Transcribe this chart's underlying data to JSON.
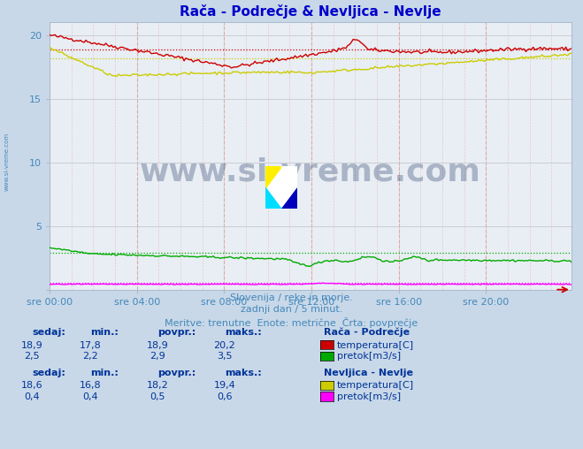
{
  "title": "Rača - Podrečje & Nevljica - Nevlje",
  "title_color": "#0000cc",
  "bg_color": "#c8d8e8",
  "plot_bg_color": "#e8eef4",
  "xlabel_color": "#4488bb",
  "xtick_labels": [
    "sre 00:00",
    "sre 04:00",
    "sre 08:00",
    "sre 12:00",
    "sre 16:00",
    "sre 20:00"
  ],
  "xtick_positions": [
    0,
    48,
    96,
    144,
    192,
    240
  ],
  "ytick_positions": [
    0,
    5,
    10,
    15,
    20
  ],
  "ymin": 0,
  "ymax": 21,
  "xmin": 0,
  "xmax": 287,
  "n_points": 288,
  "watermark_text": "www.si-vreme.com",
  "watermark_color": "#1a3060",
  "watermark_alpha": 0.3,
  "subtitle1": "Slovenija / reke in morje.",
  "subtitle2": "zadnji dan / 5 minut.",
  "subtitle3": "Meritve: trenutne  Enote: metrične  Črta: povprečje",
  "subtitle_color": "#4488bb",
  "legend_title1": "Rača - Podrečje",
  "legend_title2": "Nevljica - Nevlje",
  "legend_color": "#003399",
  "stat_label_color": "#003399",
  "raca_temp_color": "#cc0000",
  "raca_pretok_color": "#00aa00",
  "nevljica_temp_color": "#cccc00",
  "nevljica_pretok_color": "#ff00ff",
  "raca_temp_avg": 18.9,
  "raca_pretok_avg": 2.9,
  "nevljica_temp_avg": 18.2,
  "nevljica_pretok_avg": 0.5,
  "raca_sedaj": "18,9",
  "raca_min": "17,8",
  "raca_povpr": "18,9",
  "raca_maks": "20,2",
  "raca_pretok_sedaj": "2,5",
  "raca_pretok_min": "2,2",
  "raca_pretok_povpr": "2,9",
  "raca_pretok_maks": "3,5",
  "nevljica_sedaj": "18,6",
  "nevljica_min": "16,8",
  "nevljica_povpr": "18,2",
  "nevljica_maks": "19,4",
  "nevljica_pretok_sedaj": "0,4",
  "nevljica_pretok_min": "0,4",
  "nevljica_pretok_povpr": "0,5",
  "nevljica_pretok_maks": "0,6"
}
